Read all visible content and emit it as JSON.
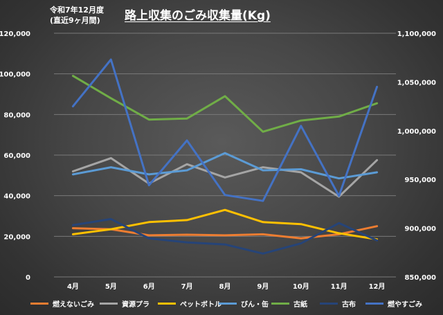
{
  "header": {
    "period_line1": "令和7年12月度",
    "period_line2": "(直近9ヶ月間)",
    "title": "路上収集のごみ収集量(Kg)"
  },
  "chart_data": {
    "type": "line",
    "title": "路上収集のごみ収集量(Kg)",
    "categories": [
      "4月",
      "5月",
      "6月",
      "7月",
      "8月",
      "9月",
      "10月",
      "11月",
      "12月"
    ],
    "y_left": {
      "min": 0,
      "max": 120000,
      "step": 20000,
      "tick_labels": [
        "0",
        "20,000",
        "40,000",
        "60,000",
        "80,000",
        "100,000",
        "120,000"
      ]
    },
    "y_right": {
      "min": 850000,
      "max": 1100000,
      "step": 50000,
      "tick_labels": [
        "850,000",
        "900,000",
        "950,000",
        "1,000,000",
        "1,050,000",
        "1,100,000"
      ]
    },
    "grid": true,
    "legend_position": "bottom",
    "series": [
      {
        "name": "燃えないごみ",
        "color": "#ed7d31",
        "axis": "left",
        "values": [
          24000,
          23500,
          20500,
          20800,
          20500,
          21000,
          19000,
          21000,
          25000
        ]
      },
      {
        "name": "資源プラ",
        "color": "#a5a5a5",
        "axis": "left",
        "values": [
          52000,
          58500,
          46000,
          55500,
          49000,
          54000,
          51500,
          39500,
          57500
        ]
      },
      {
        "name": "ペットボトル",
        "color": "#ffc000",
        "axis": "left",
        "values": [
          21000,
          23500,
          27000,
          28000,
          33000,
          27000,
          26000,
          21500,
          18500
        ]
      },
      {
        "name": "びん・缶",
        "color": "#5b9bd5",
        "axis": "left",
        "values": [
          50500,
          54000,
          50500,
          52500,
          61000,
          52500,
          53000,
          48500,
          51500
        ]
      },
      {
        "name": "古紙",
        "color": "#70ad47",
        "axis": "left",
        "values": [
          99000,
          88000,
          77500,
          78000,
          89000,
          71500,
          77000,
          79000,
          85500
        ]
      },
      {
        "name": "古布",
        "color": "#264478",
        "axis": "left",
        "values": [
          25500,
          28500,
          19000,
          17000,
          16000,
          11500,
          16500,
          26500,
          18000
        ]
      },
      {
        "name": "燃やすごみ",
        "color": "#4472c4",
        "axis": "right",
        "values": [
          1025000,
          1073000,
          944000,
          990000,
          934000,
          928000,
          1005000,
          933000,
          1045000
        ]
      }
    ]
  }
}
